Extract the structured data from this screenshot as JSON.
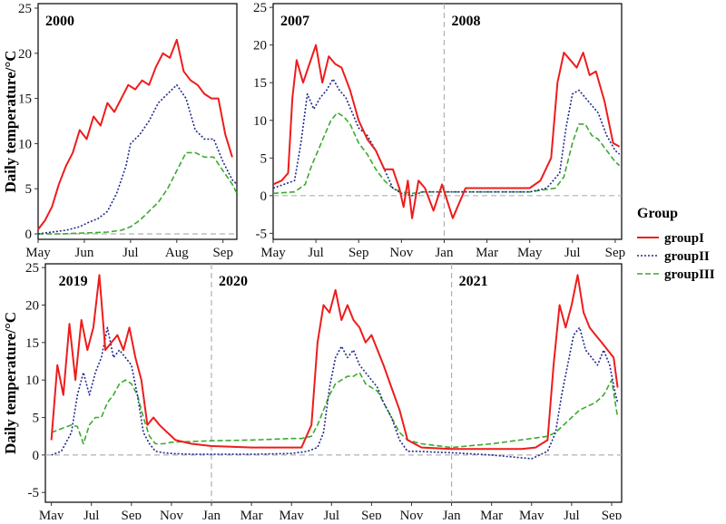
{
  "chart_data": [
    {
      "id": "p2000",
      "type": "line",
      "year_labels": [
        {
          "text": "2000",
          "at": 0
        }
      ],
      "ylabel": "Daily temperature/°C",
      "ylim": [
        -0.6,
        25.5
      ],
      "yticks": [
        0,
        5,
        10,
        15,
        20,
        25
      ],
      "xlim": [
        0,
        4.3
      ],
      "xticks": [
        {
          "pos": 0,
          "label": "May"
        },
        {
          "pos": 1,
          "label": "Jun"
        },
        {
          "pos": 2,
          "label": "Jul"
        },
        {
          "pos": 3,
          "label": "Aug"
        },
        {
          "pos": 4,
          "label": "Sep"
        }
      ],
      "year_dividers": [],
      "zero_line": true,
      "series": [
        {
          "name": "groupI",
          "x": [
            0,
            0.15,
            0.3,
            0.45,
            0.6,
            0.75,
            0.9,
            1.05,
            1.2,
            1.35,
            1.5,
            1.65,
            1.8,
            1.95,
            2.1,
            2.25,
            2.4,
            2.55,
            2.7,
            2.85,
            3.0,
            3.15,
            3.3,
            3.45,
            3.6,
            3.75,
            3.9,
            4.05,
            4.2
          ],
          "y": [
            0.5,
            1.5,
            3,
            5.5,
            7.5,
            9,
            11.5,
            10.5,
            13,
            12,
            14.5,
            13.5,
            15,
            16.5,
            16,
            17,
            16.5,
            18.5,
            20,
            19.5,
            21.5,
            18,
            17,
            16.5,
            15.5,
            15,
            15,
            11,
            8.5
          ]
        },
        {
          "name": "groupII",
          "x": [
            0,
            0.3,
            0.6,
            0.9,
            1.1,
            1.3,
            1.5,
            1.7,
            1.9,
            2.0,
            2.2,
            2.4,
            2.6,
            2.8,
            3.0,
            3.2,
            3.4,
            3.6,
            3.8,
            4.0,
            4.2,
            4.3
          ],
          "y": [
            0,
            0.2,
            0.4,
            0.8,
            1.3,
            1.7,
            2.5,
            4.5,
            7.5,
            10,
            11,
            12.5,
            14.5,
            15.5,
            16.5,
            15,
            11.5,
            10.5,
            10.5,
            8,
            6,
            5.5
          ]
        },
        {
          "name": "groupIII",
          "x": [
            0,
            0.5,
            1.0,
            1.5,
            1.8,
            2.0,
            2.2,
            2.4,
            2.6,
            2.8,
            3.0,
            3.2,
            3.4,
            3.6,
            3.8,
            4.0,
            4.2,
            4.3
          ],
          "y": [
            0,
            0,
            0.1,
            0.2,
            0.4,
            0.8,
            1.5,
            2.5,
            3.5,
            5,
            7,
            9,
            9,
            8.5,
            8.5,
            7,
            5.5,
            4.5
          ]
        }
      ]
    },
    {
      "id": "p2007",
      "type": "line",
      "year_labels": [
        {
          "text": "2007",
          "at": 0
        },
        {
          "text": "2008",
          "at": 8
        }
      ],
      "ylabel": "",
      "ylim": [
        -5.8,
        25.5
      ],
      "yticks": [
        -5,
        0,
        5,
        10,
        15,
        20,
        25
      ],
      "xlim": [
        0,
        16.3
      ],
      "xticks": [
        {
          "pos": 0,
          "label": "May"
        },
        {
          "pos": 2,
          "label": "Jul"
        },
        {
          "pos": 4,
          "label": "Sep"
        },
        {
          "pos": 6,
          "label": "Nov"
        },
        {
          "pos": 8,
          "label": "Jan"
        },
        {
          "pos": 10,
          "label": "Mar"
        },
        {
          "pos": 12,
          "label": "May"
        },
        {
          "pos": 14,
          "label": "Jul"
        },
        {
          "pos": 16,
          "label": "Sep"
        }
      ],
      "year_dividers": [
        8
      ],
      "zero_line": true,
      "series": [
        {
          "name": "groupI",
          "x": [
            0,
            0.4,
            0.7,
            0.9,
            1.1,
            1.4,
            1.7,
            2.0,
            2.3,
            2.6,
            2.9,
            3.2,
            3.6,
            4.0,
            4.4,
            4.8,
            5.2,
            5.6,
            5.9,
            6.1,
            6.3,
            6.5,
            6.8,
            7.1,
            7.5,
            7.9,
            8.4,
            9.0,
            10,
            11,
            12,
            12.5,
            13.0,
            13.3,
            13.6,
            13.9,
            14.2,
            14.5,
            14.8,
            15.1,
            15.5,
            15.9,
            16.2
          ],
          "y": [
            1.5,
            2,
            3,
            13,
            18,
            15,
            17.5,
            20,
            15,
            18.5,
            17.5,
            17,
            14,
            10,
            7.5,
            6,
            3.5,
            3.5,
            1,
            -1.5,
            2,
            -3,
            2,
            1,
            -2,
            1.5,
            -3,
            1,
            1,
            1,
            1,
            2,
            5,
            15,
            19,
            18,
            17,
            19,
            16,
            16.5,
            12.5,
            7,
            6.5
          ]
        },
        {
          "name": "groupII",
          "x": [
            0,
            0.5,
            1.0,
            1.3,
            1.6,
            1.9,
            2.2,
            2.5,
            2.8,
            3.1,
            3.4,
            3.7,
            4.0,
            4.4,
            4.8,
            5.2,
            5.6,
            6.0,
            6.5,
            7,
            8,
            10,
            12,
            12.8,
            13.4,
            13.7,
            14.0,
            14.3,
            14.6,
            14.9,
            15.2,
            15.6,
            16.0,
            16.2
          ],
          "y": [
            1,
            1.5,
            2,
            7,
            13.5,
            11.5,
            13,
            14,
            15.5,
            14,
            13,
            11,
            9,
            8,
            6,
            3.5,
            1,
            0.3,
            0,
            0.5,
            0.5,
            0.5,
            0.5,
            1,
            3,
            9,
            13.5,
            14,
            13,
            12,
            11,
            8,
            6,
            5.5
          ]
        },
        {
          "name": "groupIII",
          "x": [
            0,
            1.0,
            1.5,
            1.8,
            2.1,
            2.4,
            2.7,
            3.0,
            3.3,
            3.6,
            4.0,
            4.4,
            4.8,
            5.2,
            5.6,
            6.0,
            6.5,
            7,
            8,
            10,
            12,
            13.2,
            13.6,
            14.0,
            14.3,
            14.6,
            14.9,
            15.2,
            15.6,
            16.0,
            16.2
          ],
          "y": [
            0.3,
            0.5,
            1.5,
            4,
            6,
            8,
            10,
            11,
            10.5,
            9.5,
            7,
            5.5,
            3.5,
            2,
            1,
            0.5,
            0.3,
            0.5,
            0.5,
            0.5,
            0.5,
            1,
            2.5,
            7,
            9.5,
            9.5,
            8,
            7.5,
            6,
            4.5,
            4
          ]
        }
      ]
    },
    {
      "id": "p2019",
      "type": "line",
      "year_labels": [
        {
          "text": "2019",
          "at": 0
        },
        {
          "text": "2020",
          "at": 8
        },
        {
          "text": "2021",
          "at": 20
        }
      ],
      "ylabel": "Daily temperature/°C",
      "ylim": [
        -6.3,
        25.5
      ],
      "yticks": [
        -5,
        0,
        5,
        10,
        15,
        20,
        25
      ],
      "xlim": [
        -0.3,
        28.5
      ],
      "xticks": [
        {
          "pos": 0,
          "label": "May"
        },
        {
          "pos": 2,
          "label": "Jul"
        },
        {
          "pos": 4,
          "label": "Sep"
        },
        {
          "pos": 6,
          "label": "Nov"
        },
        {
          "pos": 8,
          "label": "Jan"
        },
        {
          "pos": 10,
          "label": "Mar"
        },
        {
          "pos": 12,
          "label": "May"
        },
        {
          "pos": 14,
          "label": "Jul"
        },
        {
          "pos": 16,
          "label": "Sep"
        },
        {
          "pos": 18,
          "label": "Nov"
        },
        {
          "pos": 20,
          "label": "Jan"
        },
        {
          "pos": 22,
          "label": "Mar"
        },
        {
          "pos": 24,
          "label": "May"
        },
        {
          "pos": 26,
          "label": "Jul"
        },
        {
          "pos": 28,
          "label": "Sep"
        }
      ],
      "year_dividers": [
        8,
        20
      ],
      "zero_line": true,
      "series": [
        {
          "name": "groupI",
          "x": [
            0,
            0.3,
            0.6,
            0.9,
            1.2,
            1.5,
            1.8,
            2.1,
            2.4,
            2.7,
            3.0,
            3.3,
            3.6,
            3.9,
            4.2,
            4.5,
            4.8,
            5.1,
            5.4,
            5.8,
            6.2,
            7,
            8,
            10,
            12,
            12.5,
            13.0,
            13.3,
            13.6,
            13.9,
            14.2,
            14.5,
            14.8,
            15.1,
            15.4,
            15.7,
            16.0,
            16.3,
            16.6,
            17.0,
            17.4,
            17.8,
            18.5,
            20,
            22,
            23.5,
            24.2,
            24.8,
            25.1,
            25.4,
            25.7,
            26.0,
            26.3,
            26.6,
            26.9,
            27.2,
            27.5,
            27.8,
            28.1,
            28.3
          ],
          "y": [
            2,
            12,
            8,
            17.5,
            10,
            18,
            14,
            17,
            24,
            14,
            15,
            16,
            14,
            17,
            13,
            10,
            4,
            5,
            4,
            3,
            2,
            1.5,
            1.2,
            1,
            1,
            1,
            4,
            15,
            20,
            19,
            22,
            18,
            20,
            18,
            17,
            15,
            16,
            14,
            12,
            9,
            6,
            2,
            1,
            0.8,
            0.8,
            0.8,
            1,
            2,
            12,
            20,
            17,
            20,
            24,
            19,
            17,
            16,
            15,
            14,
            13,
            9
          ]
        },
        {
          "name": "groupII",
          "x": [
            0,
            0.5,
            1.0,
            1.3,
            1.6,
            1.9,
            2.2,
            2.5,
            2.8,
            3.1,
            3.4,
            3.7,
            4.0,
            4.3,
            4.6,
            4.9,
            5.2,
            5.6,
            6.0,
            7,
            8,
            10,
            12,
            12.8,
            13.3,
            13.6,
            13.9,
            14.2,
            14.5,
            14.8,
            15.1,
            15.4,
            15.7,
            16.0,
            16.3,
            16.6,
            17.0,
            17.4,
            17.8,
            18.3,
            19,
            20,
            22,
            24,
            24.8,
            25.2,
            25.5,
            25.8,
            26.1,
            26.4,
            26.7,
            27.0,
            27.3,
            27.6,
            27.9,
            28.2,
            28.3
          ],
          "y": [
            0,
            0.5,
            3,
            8,
            11,
            8,
            11,
            13,
            17,
            13,
            14,
            13,
            12,
            8,
            3,
            1.5,
            0.5,
            0.3,
            0.2,
            0.1,
            0.1,
            0.1,
            0.2,
            0.5,
            1,
            3,
            9,
            13,
            14.5,
            13,
            14,
            12,
            11,
            10,
            9,
            7,
            5,
            2,
            0.5,
            0.5,
            0.4,
            0.3,
            0,
            -0.5,
            0.5,
            3,
            8,
            12,
            16,
            17,
            14,
            13,
            12,
            14,
            12,
            8,
            7
          ]
        },
        {
          "name": "groupIII",
          "x": [
            0,
            0.5,
            1.0,
            1.3,
            1.6,
            1.9,
            2.2,
            2.5,
            2.8,
            3.1,
            3.4,
            3.7,
            4.0,
            4.3,
            4.6,
            4.9,
            5.2,
            5.6,
            6.0,
            7,
            8,
            10,
            12,
            12.5,
            13.0,
            13.3,
            13.6,
            13.9,
            14.2,
            14.5,
            14.8,
            15.1,
            15.4,
            15.7,
            16.0,
            16.3,
            16.6,
            17.0,
            17.4,
            17.8,
            18.5,
            20,
            22,
            24,
            24.8,
            25.2,
            25.6,
            26.0,
            26.4,
            26.8,
            27.2,
            27.6,
            28.0,
            28.3
          ],
          "y": [
            3,
            3.5,
            4,
            3.8,
            1.5,
            4,
            5,
            5,
            7,
            8,
            9.5,
            10,
            9.5,
            8,
            5,
            2.5,
            1.5,
            1.5,
            1.7,
            1.8,
            1.9,
            2,
            2.2,
            2.2,
            2.5,
            4,
            6,
            8,
            9.5,
            10,
            10.5,
            10.5,
            11,
            9.5,
            9,
            8.5,
            7,
            5,
            3,
            2,
            1.5,
            1,
            1.5,
            2.2,
            2.5,
            3,
            4,
            5,
            6,
            6.5,
            7,
            8,
            10,
            5
          ]
        }
      ]
    }
  ],
  "legend": {
    "title": "Group",
    "items": [
      {
        "name": "groupI",
        "label": "groupI",
        "color": "#EE1C1C",
        "dash": "solid"
      },
      {
        "name": "groupII",
        "label": "groupII",
        "color": "#1F2A8C",
        "dash": "dotted"
      },
      {
        "name": "groupIII",
        "label": "groupIII",
        "color": "#3BAA2E",
        "dash": "dashed"
      }
    ]
  }
}
